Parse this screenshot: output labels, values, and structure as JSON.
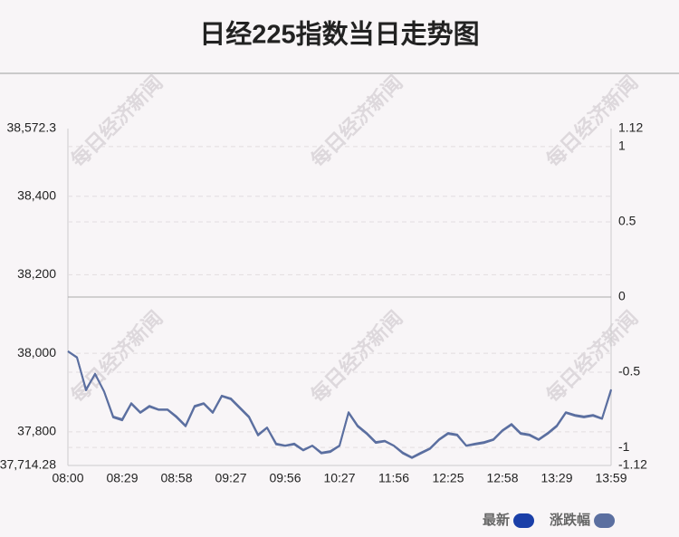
{
  "chart_data": {
    "type": "line",
    "title": "日经225指数当日走势图",
    "watermark": "每日经济新闻",
    "categories": [
      "08:00",
      null,
      null,
      null,
      null,
      null,
      "08:29",
      null,
      null,
      null,
      null,
      null,
      "08:58",
      null,
      null,
      null,
      null,
      null,
      "09:27",
      null,
      null,
      null,
      null,
      null,
      "09:56",
      null,
      null,
      null,
      null,
      null,
      "10:27",
      null,
      null,
      null,
      null,
      null,
      "11:56",
      null,
      null,
      null,
      null,
      null,
      "12:25",
      null,
      null,
      null,
      null,
      null,
      "12:58",
      null,
      null,
      null,
      null,
      null,
      "13:29",
      null,
      null,
      null,
      null,
      null,
      "13:59"
    ],
    "series": [
      {
        "name": "最新",
        "color": "#1a3fa8",
        "values": [
          38005,
          37989,
          37908,
          37947,
          37903,
          37839,
          37832,
          37873,
          37850,
          37866,
          37857,
          37857,
          37839,
          37816,
          37866,
          37873,
          37850,
          37892,
          37885,
          37862,
          37839,
          37793,
          37811,
          37770,
          37765,
          37770,
          37754,
          37765,
          37747,
          37751,
          37765,
          37850,
          37816,
          37797,
          37774,
          37777,
          37765,
          37747,
          37735,
          37747,
          37758,
          37781,
          37797,
          37793,
          37765,
          37770,
          37774,
          37781,
          37804,
          37820,
          37797,
          37793,
          37781,
          37797,
          37816,
          37850,
          37843,
          37839,
          37843,
          37834,
          37908
        ]
      },
      {
        "name": "涨跌幅",
        "color": "#5b6fa0",
        "axis": "y2",
        "values": [
          -0.36,
          -0.4,
          -0.62,
          -0.51,
          -0.63,
          -0.8,
          -0.82,
          -0.71,
          -0.77,
          -0.73,
          -0.75,
          -0.75,
          -0.8,
          -0.86,
          -0.73,
          -0.71,
          -0.77,
          -0.66,
          -0.68,
          -0.74,
          -0.8,
          -0.92,
          -0.87,
          -0.98,
          -0.99,
          -0.98,
          -1.02,
          -0.99,
          -1.04,
          -1.03,
          -0.99,
          -0.77,
          -0.86,
          -0.91,
          -0.97,
          -0.96,
          -0.99,
          -1.04,
          -1.07,
          -1.04,
          -1.01,
          -0.95,
          -0.91,
          -0.92,
          -0.99,
          -0.98,
          -0.97,
          -0.95,
          -0.89,
          -0.85,
          -0.91,
          -0.92,
          -0.95,
          -0.91,
          -0.86,
          -0.77,
          -0.79,
          -0.8,
          -0.79,
          -0.81,
          -0.62
        ]
      }
    ],
    "ylim": [
      37714.28,
      38572.3
    ],
    "yticks": [
      {
        "value": 38572.3,
        "label": "38,572.3"
      },
      {
        "value": 38400,
        "label": "38,400"
      },
      {
        "value": 38200,
        "label": "38,200"
      },
      {
        "value": 38000,
        "label": "38,000"
      },
      {
        "value": 37800,
        "label": "37,800"
      },
      {
        "value": 37714.28,
        "label": "37,714.28"
      }
    ],
    "y2lim": [
      -1.12,
      1.12
    ],
    "y2ticks": [
      1.12,
      1,
      0.5,
      0,
      -0.5,
      -1,
      -1.12
    ],
    "grid": true,
    "legend": "bottom-right"
  }
}
